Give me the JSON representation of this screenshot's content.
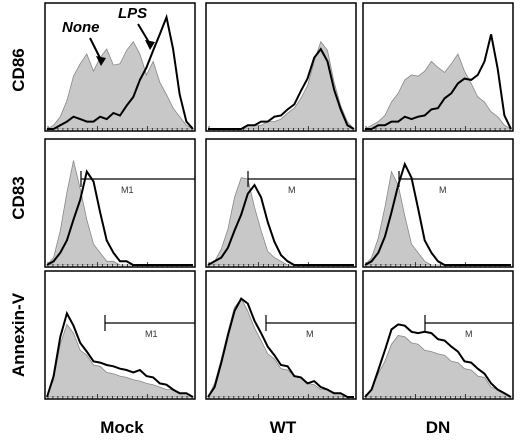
{
  "chart_data": {
    "type": "area",
    "columns": [
      "Mock",
      "WT",
      "DN"
    ],
    "rows": [
      "CD86",
      "CD83",
      "Annexin-V"
    ],
    "annotations": {
      "none": "None",
      "lps": "LPS"
    },
    "legend": [
      {
        "name": "None",
        "style": "filled-gray"
      },
      {
        "name": "LPS",
        "style": "black-outline"
      }
    ],
    "panels": [
      {
        "row": "CD86",
        "col": "Mock",
        "gate": "",
        "none": [
          0,
          1,
          3,
          8,
          14,
          18,
          20,
          16,
          19,
          22,
          17,
          18,
          21,
          24,
          20,
          15,
          18,
          13,
          9,
          6,
          3,
          1,
          0
        ],
        "lps": [
          0,
          0,
          1,
          2,
          3,
          3,
          2,
          2,
          3,
          3,
          4,
          4,
          6,
          9,
          13,
          17,
          21,
          26,
          30,
          22,
          9,
          2,
          0
        ]
      },
      {
        "row": "CD86",
        "col": "WT",
        "gate": "",
        "none": [
          0,
          0,
          0,
          0,
          0,
          0,
          1,
          1,
          1,
          2,
          2,
          3,
          4,
          6,
          8,
          12,
          18,
          24,
          21,
          13,
          6,
          2,
          0
        ],
        "lps": [
          0,
          0,
          0,
          0,
          0,
          0,
          1,
          1,
          2,
          2,
          3,
          4,
          5,
          7,
          10,
          14,
          19,
          22,
          18,
          11,
          5,
          1,
          0
        ]
      },
      {
        "row": "CD86",
        "col": "DN",
        "gate": "",
        "none": [
          0,
          1,
          2,
          4,
          7,
          10,
          13,
          15,
          14,
          16,
          18,
          17,
          15,
          18,
          20,
          16,
          12,
          9,
          7,
          5,
          3,
          1,
          0
        ],
        "lps": [
          0,
          0,
          1,
          1,
          2,
          2,
          3,
          3,
          3,
          4,
          5,
          6,
          8,
          10,
          12,
          14,
          13,
          15,
          18,
          26,
          16,
          4,
          0
        ]
      },
      {
        "row": "CD83",
        "col": "Mock",
        "gate": "M1",
        "none": [
          0,
          2,
          9,
          20,
          28,
          21,
          12,
          6,
          3,
          1,
          1,
          0,
          0,
          0,
          0,
          0,
          0,
          0,
          0,
          0,
          0,
          0,
          0
        ],
        "lps": [
          0,
          1,
          3,
          7,
          12,
          18,
          25,
          23,
          14,
          7,
          3,
          1,
          1,
          0,
          0,
          0,
          0,
          0,
          0,
          0,
          0,
          0,
          0
        ]
      },
      {
        "row": "CD83",
        "col": "WT",
        "gate": "M",
        "none": [
          0,
          1,
          4,
          10,
          18,
          24,
          23,
          16,
          9,
          4,
          2,
          1,
          0,
          0,
          0,
          0,
          0,
          0,
          0,
          0,
          0,
          0,
          0
        ],
        "lps": [
          0,
          1,
          2,
          5,
          9,
          14,
          19,
          22,
          18,
          12,
          6,
          3,
          1,
          0,
          0,
          0,
          0,
          0,
          0,
          0,
          0,
          0,
          0
        ]
      },
      {
        "row": "CD83",
        "col": "DN",
        "gate": "M",
        "none": [
          0,
          2,
          7,
          16,
          25,
          22,
          13,
          6,
          3,
          1,
          0,
          0,
          0,
          0,
          0,
          0,
          0,
          0,
          0,
          0,
          0,
          0,
          0
        ],
        "lps": [
          0,
          1,
          3,
          8,
          14,
          22,
          27,
          24,
          15,
          7,
          3,
          1,
          0,
          0,
          0,
          0,
          0,
          0,
          0,
          0,
          0,
          0,
          0
        ]
      },
      {
        "row": "Annexin-V",
        "col": "Mock",
        "gate": "M1",
        "none": [
          0,
          5,
          14,
          20,
          17,
          13,
          11,
          9,
          8,
          7,
          6,
          6,
          5,
          5,
          4,
          4,
          3,
          3,
          2,
          2,
          1,
          1,
          0
        ],
        "lps": [
          0,
          6,
          16,
          23,
          19,
          15,
          12,
          10,
          9,
          9,
          8,
          8,
          7,
          7,
          7,
          6,
          5,
          4,
          3,
          2,
          1,
          1,
          0
        ]
      },
      {
        "row": "Annexin-V",
        "col": "WT",
        "gate": "M",
        "none": [
          0,
          4,
          10,
          18,
          24,
          27,
          23,
          19,
          15,
          12,
          10,
          8,
          7,
          6,
          5,
          4,
          3,
          2,
          2,
          1,
          1,
          0,
          0
        ],
        "lps": [
          0,
          3,
          9,
          17,
          23,
          27,
          25,
          21,
          17,
          14,
          11,
          9,
          8,
          6,
          5,
          4,
          4,
          3,
          2,
          1,
          1,
          0,
          0
        ]
      },
      {
        "row": "Annexin-V",
        "col": "DN",
        "gate": "M",
        "none": [
          0,
          2,
          6,
          10,
          14,
          17,
          16,
          15,
          14,
          13,
          12,
          12,
          11,
          10,
          9,
          8,
          7,
          6,
          5,
          3,
          2,
          1,
          0
        ],
        "lps": [
          0,
          2,
          7,
          13,
          18,
          20,
          19,
          18,
          17,
          18,
          17,
          16,
          15,
          14,
          12,
          10,
          9,
          8,
          6,
          4,
          2,
          1,
          0
        ]
      }
    ]
  }
}
